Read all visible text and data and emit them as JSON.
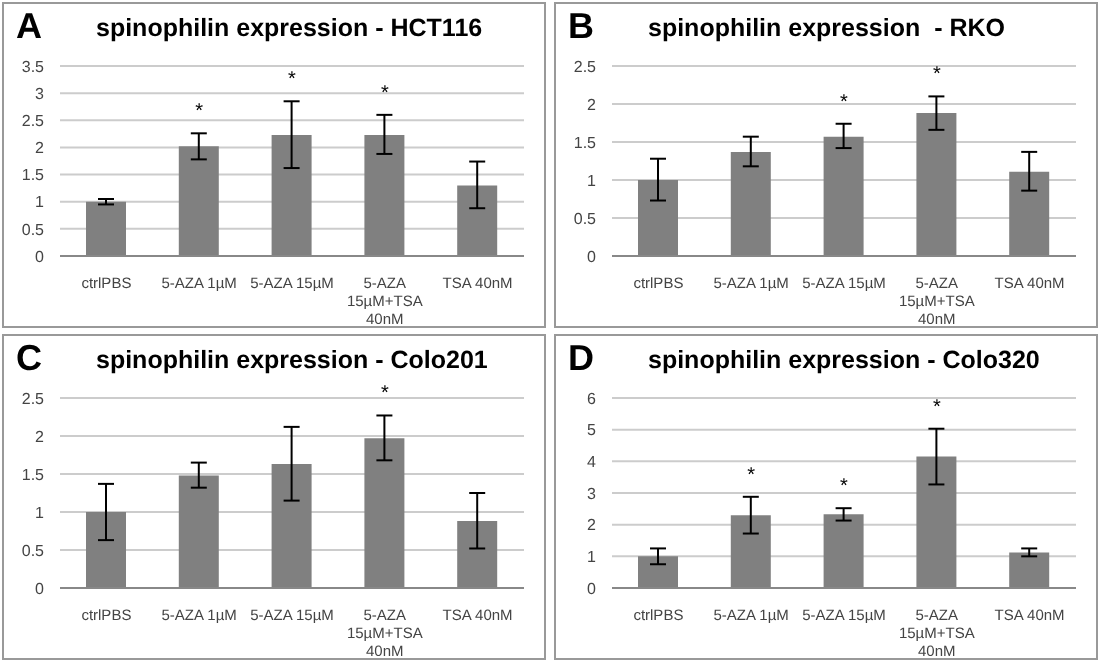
{
  "chart_data": [
    {
      "type": "bar",
      "title": "spinophilin expression - HCT116",
      "categories": [
        "ctrlPBS",
        "5-AZA 1µM",
        "5-AZA 15µM",
        "5-AZA 15µM+TSA 40nM",
        "TSA 40nM"
      ],
      "values": [
        1.0,
        2.02,
        2.23,
        2.23,
        1.3
      ],
      "errors": [
        [
          0.95,
          1.05
        ],
        [
          1.78,
          2.26
        ],
        [
          1.62,
          2.85
        ],
        [
          1.88,
          2.6
        ],
        [
          0.88,
          1.74
        ]
      ],
      "color": "#808080",
      "ylim": [
        0,
        3.5
      ],
      "yticks": [
        0,
        0.5,
        1,
        1.5,
        2,
        2.5,
        3,
        3.5
      ],
      "grid": "y",
      "annotations": [
        "A",
        {
          "text": "*",
          "x": "5-AZA 1µM",
          "y": 2.26
        },
        {
          "text": "*",
          "x": "5-AZA 15µM",
          "y": 2.85
        },
        {
          "text": "*",
          "x": "5-AZA 15µM+TSA 40nM",
          "y": 2.6
        }
      ]
    },
    {
      "type": "bar",
      "title": "spinophilin expression  - RKO",
      "categories": [
        "ctrlPBS",
        "5-AZA 1µM",
        "5-AZA 15µM",
        "5-AZA 15µM+TSA 40nM",
        "TSA 40nM"
      ],
      "values": [
        1.0,
        1.37,
        1.57,
        1.88,
        1.11
      ],
      "errors": [
        [
          0.73,
          1.28
        ],
        [
          1.18,
          1.57
        ],
        [
          1.42,
          1.74
        ],
        [
          1.66,
          2.1
        ],
        [
          0.86,
          1.37
        ]
      ],
      "color": "#808080",
      "ylim": [
        0,
        2.5
      ],
      "yticks": [
        0,
        0.5,
        1,
        1.5,
        2,
        2.5
      ],
      "grid": "y",
      "annotations": [
        "B",
        {
          "text": "*",
          "x": "5-AZA 15µM",
          "y": 1.74
        },
        {
          "text": "*",
          "x": "5-AZA 15µM+TSA 40nM",
          "y": 2.1
        }
      ]
    },
    {
      "type": "bar",
      "title": "spinophilin expression - Colo201",
      "categories": [
        "ctrlPBS",
        "5-AZA 1µM",
        "5-AZA 15µM",
        "5-AZA 15µM+TSA 40nM",
        "TSA 40nM"
      ],
      "values": [
        1.0,
        1.48,
        1.63,
        1.97,
        0.88
      ],
      "errors": [
        [
          0.63,
          1.37
        ],
        [
          1.32,
          1.65
        ],
        [
          1.15,
          2.12
        ],
        [
          1.68,
          2.27
        ],
        [
          0.52,
          1.25
        ]
      ],
      "color": "#808080",
      "ylim": [
        0,
        2.5
      ],
      "yticks": [
        0,
        0.5,
        1,
        1.5,
        2,
        2.5
      ],
      "grid": "y",
      "annotations": [
        "C",
        {
          "text": "*",
          "x": "5-AZA 15µM+TSA 40nM",
          "y": 2.27
        }
      ]
    },
    {
      "type": "bar",
      "title": "spinophilin expression - Colo320",
      "categories": [
        "ctrlPBS",
        "5-AZA 1µM",
        "5-AZA 15µM",
        "5-AZA 15µM+TSA 40nM",
        "TSA 40nM"
      ],
      "values": [
        1.0,
        2.3,
        2.33,
        4.15,
        1.12
      ],
      "errors": [
        [
          0.75,
          1.25
        ],
        [
          1.72,
          2.88
        ],
        [
          2.13,
          2.52
        ],
        [
          3.27,
          5.03
        ],
        [
          1.0,
          1.25
        ]
      ],
      "color": "#808080",
      "ylim": [
        0,
        6
      ],
      "yticks": [
        0,
        1,
        2,
        3,
        4,
        5,
        6
      ],
      "grid": "y",
      "annotations": [
        "D",
        {
          "text": "*",
          "x": "5-AZA 1µM",
          "y": 2.88
        },
        {
          "text": "*",
          "x": "5-AZA 15µM",
          "y": 2.52
        },
        {
          "text": "*",
          "x": "5-AZA 15µM+TSA 40nM",
          "y": 5.03
        }
      ]
    }
  ]
}
